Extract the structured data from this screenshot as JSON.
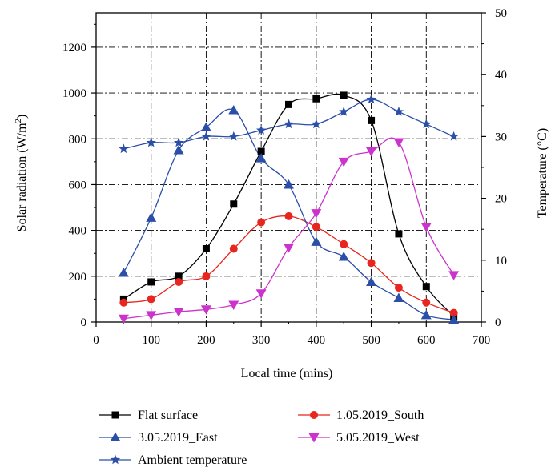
{
  "chart_data": {
    "type": "line",
    "xlabel": "Local time (mins)",
    "ylabel": "Solar radiation (W/m²)",
    "ylabel_main": "Solar radiation (W/m",
    "ylabel_sup": "2",
    "ylabel_close": ")",
    "y2label": "Temperature (°C)",
    "xlim": [
      0,
      700
    ],
    "ylim": [
      0,
      1350
    ],
    "y2lim": [
      0,
      50
    ],
    "xticks": [
      0,
      100,
      200,
      300,
      400,
      500,
      600,
      700
    ],
    "yticks": [
      0,
      200,
      400,
      600,
      800,
      1000,
      1200
    ],
    "y2ticks": [
      0,
      10,
      20,
      30,
      40,
      50
    ],
    "grid": "dash-dot",
    "legend_position": "bottom",
    "series": [
      {
        "name": "Flat surface",
        "axis": "left",
        "color": "#000000",
        "marker": "square",
        "x": [
          50,
          100,
          150,
          200,
          250,
          300,
          350,
          400,
          450,
          500,
          550,
          600,
          650
        ],
        "y": [
          100,
          175,
          200,
          320,
          515,
          745,
          950,
          975,
          990,
          880,
          385,
          155,
          25
        ]
      },
      {
        "name": "1.05.2019_South",
        "axis": "left",
        "color": "#e8251f",
        "marker": "circle",
        "x": [
          50,
          100,
          150,
          200,
          250,
          300,
          350,
          400,
          450,
          500,
          550,
          600,
          650
        ],
        "y": [
          85,
          100,
          175,
          200,
          320,
          435,
          462,
          415,
          340,
          258,
          150,
          85,
          40
        ]
      },
      {
        "name": "3.05.2019_East",
        "axis": "left",
        "color": "#2b4ea8",
        "marker": "triangle-up",
        "x": [
          50,
          100,
          150,
          200,
          250,
          300,
          350,
          400,
          450,
          500,
          550,
          600,
          650
        ],
        "y": [
          215,
          455,
          750,
          850,
          925,
          715,
          600,
          350,
          285,
          175,
          105,
          30,
          10
        ]
      },
      {
        "name": "5.05.2019_West",
        "axis": "left",
        "color": "#cc33cc",
        "marker": "triangle-down",
        "x": [
          50,
          100,
          150,
          200,
          250,
          300,
          350,
          400,
          450,
          500,
          550,
          600,
          650
        ],
        "y": [
          15,
          30,
          45,
          55,
          75,
          125,
          325,
          475,
          700,
          745,
          785,
          415,
          205
        ]
      },
      {
        "name": "Ambient temperature",
        "axis": "right",
        "color": "#2b4ea8",
        "marker": "star",
        "x": [
          50,
          100,
          150,
          200,
          250,
          300,
          350,
          400,
          450,
          500,
          550,
          600,
          650
        ],
        "y": [
          28,
          29,
          29,
          30,
          30,
          31,
          32,
          32,
          34,
          36,
          34,
          32,
          30
        ]
      }
    ]
  }
}
